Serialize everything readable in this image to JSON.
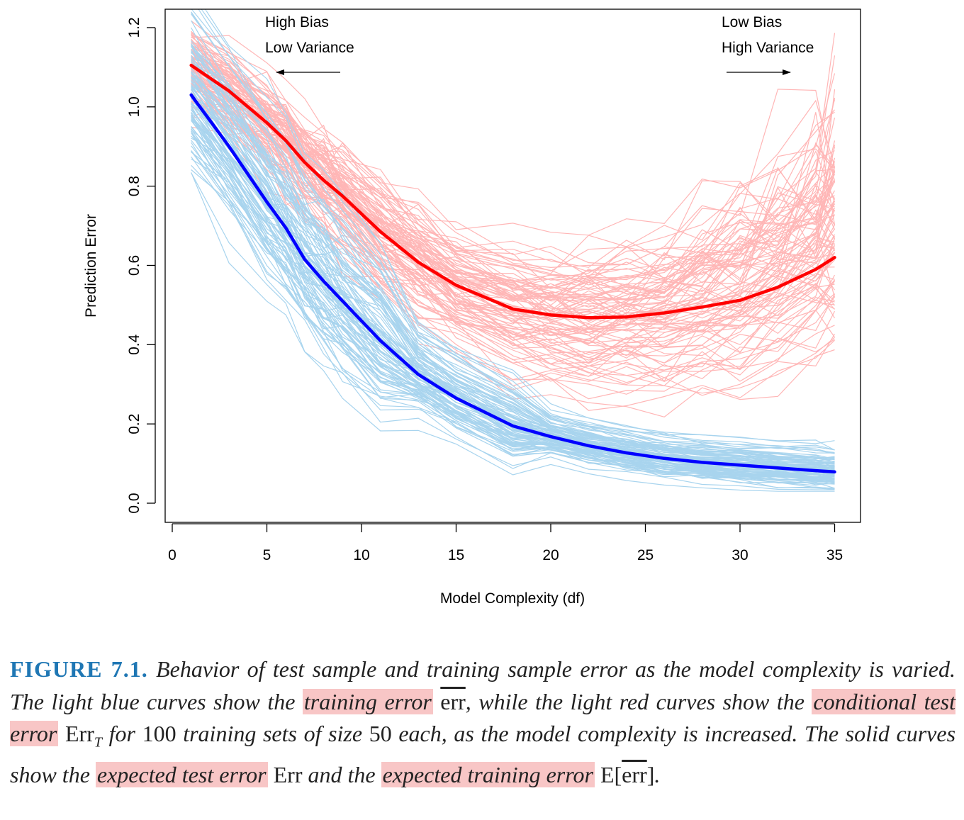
{
  "chart_data": {
    "type": "line",
    "xlabel": "Model Complexity (df)",
    "ylabel": "Prediction Error",
    "xlim": [
      0,
      35
    ],
    "ylim": [
      0,
      1.2
    ],
    "x_ticks": [
      "0",
      "5",
      "10",
      "15",
      "20",
      "25",
      "30",
      "35"
    ],
    "y_ticks": [
      "0.0",
      "0.2",
      "0.4",
      "0.6",
      "0.8",
      "1.0",
      "1.2"
    ],
    "annotations": {
      "left_line1": "High Bias",
      "left_line2": "Low Variance",
      "right_line1": "Low Bias",
      "right_line2": "High Variance"
    },
    "x": [
      1,
      3,
      5,
      6,
      7,
      8,
      9,
      11,
      13,
      15,
      18,
      20,
      22,
      24,
      26,
      28,
      30,
      32,
      34,
      35
    ],
    "series": [
      {
        "name": "Expected test error",
        "color": "#ff0000",
        "values": [
          1.105,
          1.04,
          0.96,
          0.915,
          0.86,
          0.815,
          0.775,
          0.685,
          0.608,
          0.55,
          0.49,
          0.475,
          0.468,
          0.47,
          0.48,
          0.495,
          0.512,
          0.545,
          0.59,
          0.62
        ]
      },
      {
        "name": "Expected training error",
        "color": "#0000ff",
        "values": [
          1.03,
          0.9,
          0.76,
          0.695,
          0.615,
          0.56,
          0.51,
          0.41,
          0.325,
          0.265,
          0.195,
          0.168,
          0.145,
          0.127,
          0.113,
          0.103,
          0.096,
          0.089,
          0.082,
          0.079
        ]
      }
    ],
    "background_curves": [
      {
        "name": "Conditional test error (100 training sets)",
        "count": 100,
        "color": "#ffb6b6"
      },
      {
        "name": "Training error (100 training sets)",
        "count": 100,
        "color": "#a8d4ee"
      }
    ]
  },
  "caption": {
    "label": "FIGURE 7.1.",
    "t1": "Behavior of test sample and training sample error as the model complexity is varied. The light blue curves show the",
    "h1": "training error",
    "m1": "err",
    "t2": ", while the light red curves show the",
    "h2": "conditional test error",
    "m2": "Err",
    "m2sub": "T",
    "t3": "for",
    "n1": "100",
    "t4": "training sets of size",
    "n2": "50",
    "t5": "each, as the model complexity is increased. The solid curves show the",
    "h3": "expected test error",
    "m3": "Err",
    "t6": "and the",
    "h4": "expected training error",
    "m4a": "E[",
    "m4b": "err",
    "m4c": "]",
    "t7": "."
  }
}
